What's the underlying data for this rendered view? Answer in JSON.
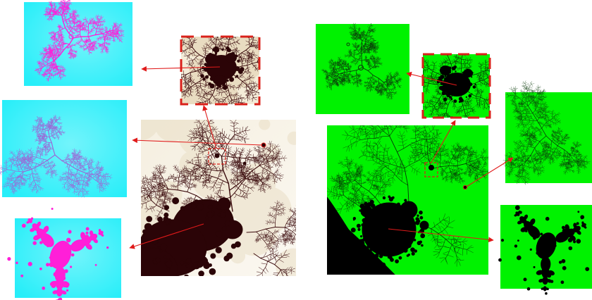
{
  "colors": {
    "background": "#ffffff",
    "julia_cyan_bg": "#27eef9",
    "julia_magenta": "#ff1fd8",
    "julia_purple": "#9a6ad6",
    "mandel_dark": "#2b0407",
    "mandel_cream": "#f7f1e2",
    "mandel_shade": "#eadfc6",
    "green_bg": "#00f200",
    "black": "#000000",
    "arrow_red": "#e01a1a",
    "dash_red": "#d9201a"
  },
  "panels": {
    "left_mandelbrot": "mandelbrot-main-view",
    "left_zoom": "mandelbrot-zoom-inset",
    "left_julia": [
      "julia-dendrite-magenta",
      "julia-dendrite-purple",
      "julia-douady-rabbit"
    ],
    "right_mandelbrot": "mandelbrot-green-main-view",
    "right_zoom": "mandelbrot-green-zoom-inset",
    "right_julia": [
      "julia-green-dendrite-left",
      "julia-green-dendrite-right",
      "julia-green-rabbit"
    ]
  }
}
